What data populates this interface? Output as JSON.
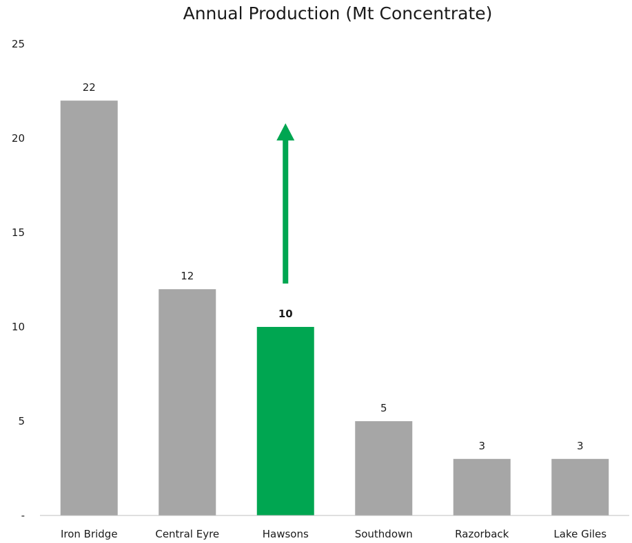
{
  "chart_data": {
    "type": "bar",
    "title": "Annual Production (Mt Concentrate)",
    "xlabel": "",
    "ylabel": "",
    "categories": [
      "Iron Bridge",
      "Central Eyre",
      "Hawsons",
      "Southdown",
      "Razorback",
      "Lake Giles"
    ],
    "values": [
      22,
      12,
      10,
      5,
      3,
      3
    ],
    "data_labels": [
      "22",
      "12",
      "10",
      "5",
      "3",
      "3"
    ],
    "ylim": [
      0,
      25
    ],
    "y_ticks": [
      0,
      5,
      10,
      15,
      20,
      25
    ],
    "y_tick_labels": [
      "-",
      "5",
      "10",
      "15",
      "20",
      "25"
    ],
    "grid": false,
    "legend": "none",
    "highlight_index": 2,
    "annotations": [
      {
        "type": "upward-arrow",
        "category": "Hawsons",
        "from_value": 12.3,
        "to_value": 20.8
      }
    ],
    "colors": {
      "bar": "#a6a6a6",
      "highlight": "#00a651",
      "axis": "#bfbfbf",
      "text": "#1a1a1a"
    }
  }
}
